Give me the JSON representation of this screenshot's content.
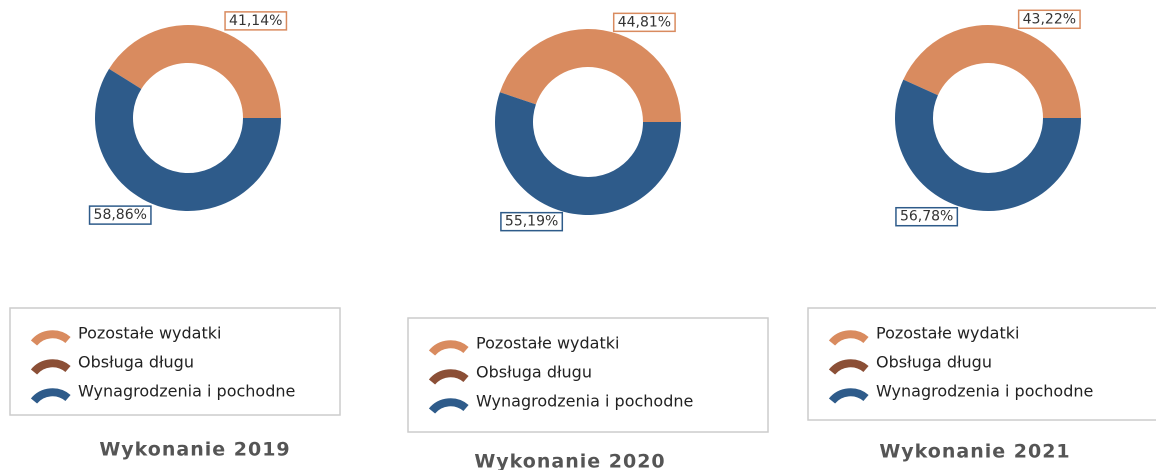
{
  "chart_data": [
    {
      "type": "pie",
      "title": "Wykonanie 2019",
      "categories": [
        "Pozostałe wydatki",
        "Obsługa długu",
        "Wynagrodzenia i pochodne"
      ],
      "colors": [
        "#d98b5f",
        "#8b4f36",
        "#2e5b8a"
      ],
      "values": [
        41.14,
        0,
        58.86
      ],
      "value_labels": [
        "41,14%",
        null,
        "58,86%"
      ]
    },
    {
      "type": "pie",
      "title": "Wykonanie 2020",
      "categories": [
        "Pozostałe wydatki",
        "Obsługa długu",
        "Wynagrodzenia i pochodne"
      ],
      "colors": [
        "#d98b5f",
        "#8b4f36",
        "#2e5b8a"
      ],
      "values": [
        44.81,
        0,
        55.19
      ],
      "value_labels": [
        "44,81%",
        null,
        "55,19%"
      ]
    },
    {
      "type": "pie",
      "title": "Wykonanie 2021",
      "categories": [
        "Pozostałe wydatki",
        "Obsługa długu",
        "Wynagrodzenia i pochodne"
      ],
      "colors": [
        "#d98b5f",
        "#8b4f36",
        "#2e5b8a"
      ],
      "values": [
        43.22,
        0,
        56.78
      ],
      "value_labels": [
        "43,22%",
        null,
        "56,78%"
      ]
    }
  ]
}
